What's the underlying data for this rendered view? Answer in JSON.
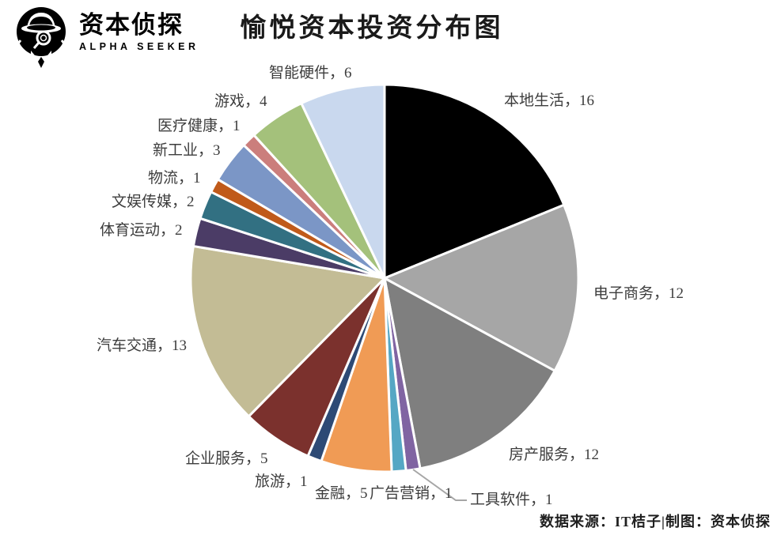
{
  "header": {
    "logo_icon": "detective-icon",
    "brand_name": "资本侦探",
    "brand_subtitle": "ALPHA SEEKER"
  },
  "title": "愉悦资本投资分布图",
  "footer": {
    "source": "数据来源：IT桔子|制图：资本侦探"
  },
  "chart_data": {
    "type": "pie",
    "title": "愉悦资本投资分布图",
    "total": 85,
    "start_angle_deg": 0,
    "direction": "clockwise",
    "legend_position": "none-direct-labels",
    "categories": [
      "本地生活",
      "电子商务",
      "房产服务",
      "工具软件",
      "广告营销",
      "金融",
      "旅游",
      "企业服务",
      "汽车交通",
      "体育运动",
      "文娱传媒",
      "物流",
      "新工业",
      "医疗健康",
      "游戏",
      "智能硬件"
    ],
    "values": [
      16,
      12,
      12,
      1,
      1,
      5,
      1,
      5,
      13,
      2,
      2,
      1,
      3,
      1,
      4,
      6
    ],
    "colors": [
      "#000000",
      "#a6a6a6",
      "#7f7f7f",
      "#8064a2",
      "#55a7c4",
      "#f09b55",
      "#2d4a75",
      "#7b312d",
      "#c3bc95",
      "#4b3c66",
      "#327082",
      "#c05a1a",
      "#7b96c6",
      "#cb7e7c",
      "#a4c17b",
      "#c9d8ee"
    ],
    "labels": [
      "本地生活，16",
      "电子商务，12",
      "房产服务，12",
      "工具软件，1",
      "广告营销，1",
      "金融，5",
      "旅游，1",
      "企业服务，5",
      "汽车交通，13",
      "体育运动，2",
      "文娱传媒，2",
      "物流，1",
      "新工业，3",
      "医疗健康，1",
      "游戏，4",
      "智能硬件，6"
    ],
    "slice_border_color": "#ffffff",
    "leader_line_color": "#a6a6a6"
  }
}
